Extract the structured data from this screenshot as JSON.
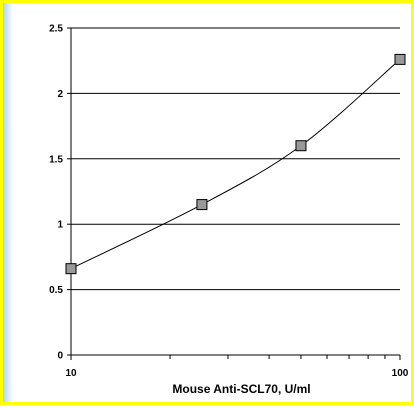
{
  "chart_data": {
    "type": "line",
    "title": "",
    "xlabel": "Mouse Anti-SCL70, U/ml",
    "ylabel": "",
    "x_scale": "log",
    "xlim": [
      10,
      100
    ],
    "ylim": [
      0,
      2.5
    ],
    "x_ticks": [
      10,
      100
    ],
    "x_tick_labels": [
      "10",
      "100"
    ],
    "y_ticks": [
      0,
      0.5,
      1,
      1.5,
      2,
      2.5
    ],
    "y_tick_labels": [
      "0",
      "0.5",
      "1",
      "1.5",
      "2",
      "2.5"
    ],
    "grid": {
      "horizontal": true,
      "vertical": false
    },
    "line_smoothing": true,
    "marker": "square",
    "marker_color": "#999999",
    "line_color": "#000000",
    "series": [
      {
        "x": [
          10,
          25,
          50,
          100
        ],
        "y": [
          0.66,
          1.15,
          1.6,
          2.26
        ]
      }
    ]
  },
  "colors": {
    "frame_border": "#ffff00",
    "left_accent": "#a9d3ff",
    "plot_background": "#ffffff",
    "gridline": "#000000"
  }
}
